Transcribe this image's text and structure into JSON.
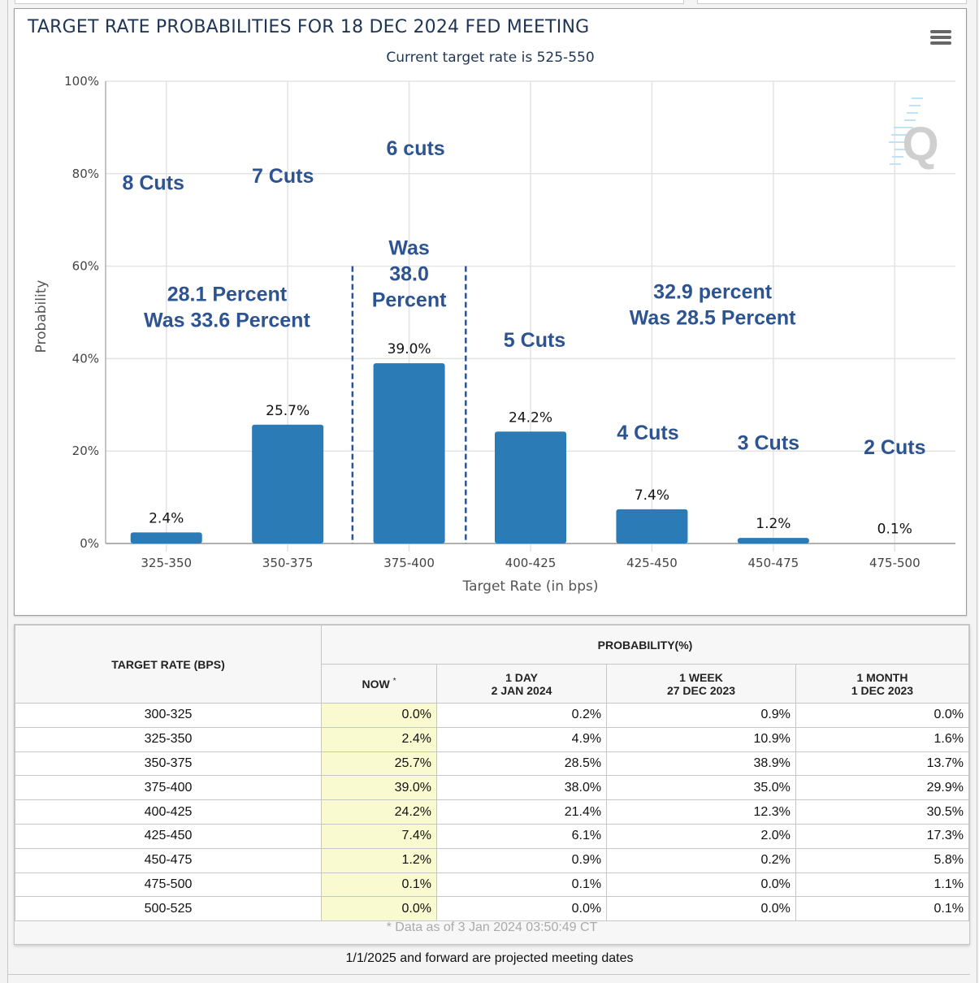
{
  "chart": {
    "title": "TARGET RATE PROBABILITIES FOR 18 DEC 2024 FED MEETING",
    "subtitle": "Current target rate is 525-550",
    "menu_icon": "hamburger-menu-icon",
    "watermark_icon": "q-logo-icon"
  },
  "chart_data": {
    "type": "bar",
    "title": "TARGET RATE PROBABILITIES FOR 18 DEC 2024 FED MEETING",
    "subtitle": "Current target rate is 525-550",
    "xlabel": "Target Rate (in bps)",
    "ylabel": "Probability",
    "ylim": [
      0,
      100
    ],
    "yticks": [
      "0%",
      "20%",
      "40%",
      "60%",
      "80%",
      "100%"
    ],
    "ytick_values": [
      0,
      20,
      40,
      60,
      80,
      100
    ],
    "grid": true,
    "categories": [
      "325-350",
      "350-375",
      "375-400",
      "400-425",
      "425-450",
      "450-475",
      "475-500"
    ],
    "values": [
      2.4,
      25.7,
      39.0,
      24.2,
      7.4,
      1.2,
      0.1
    ],
    "data_labels": [
      "2.4%",
      "25.7%",
      "39.0%",
      "24.2%",
      "7.4%",
      "1.2%",
      "0.1%"
    ],
    "bar_color": "#2b7bb6",
    "annotation_color": "#2d5491",
    "cut_labels": [
      {
        "category": "325-350",
        "text": "8 Cuts",
        "y": 76.5
      },
      {
        "category": "350-375",
        "text": "7 Cuts",
        "y": 78
      },
      {
        "category": "375-400",
        "text": "6 cuts",
        "y": 84
      },
      {
        "category": "400-425",
        "text": "5 Cuts",
        "y": 42.5
      },
      {
        "category": "425-450",
        "text": "4 Cuts",
        "y": 22.5
      },
      {
        "category": "450-475",
        "text": "3 Cuts",
        "y": 20.3
      },
      {
        "category": "475-500",
        "text": "2 Cuts",
        "y": 19.3
      }
    ],
    "annotations": [
      {
        "lines": [
          "28.1 Percent",
          "Was 33.6 Percent"
        ],
        "between": [
          "325-350",
          "350-375"
        ],
        "y": 52.5
      },
      {
        "lines": [
          "Was",
          "38.0",
          "Percent"
        ],
        "category": "375-400",
        "y": 62.5
      },
      {
        "lines": [
          "32.9 percent",
          "Was 28.5 Percent"
        ],
        "between": [
          "425-450",
          "450-475"
        ],
        "y": 53
      }
    ],
    "highlight_box": {
      "category": "375-400",
      "style": "dashed",
      "top_value": 60
    }
  },
  "table": {
    "header_rate": "TARGET RATE (BPS)",
    "header_group": "PROBABILITY(%)",
    "columns": [
      {
        "line1": "NOW",
        "line2": "",
        "marker": "*"
      },
      {
        "line1": "1 DAY",
        "line2": "2 JAN 2024"
      },
      {
        "line1": "1 WEEK",
        "line2": "27 DEC 2023"
      },
      {
        "line1": "1 MONTH",
        "line2": "1 DEC 2023"
      }
    ],
    "rows": [
      {
        "rate": "300-325",
        "now": "0.0%",
        "day": "0.2%",
        "week": "0.9%",
        "month": "0.0%"
      },
      {
        "rate": "325-350",
        "now": "2.4%",
        "day": "4.9%",
        "week": "10.9%",
        "month": "1.6%"
      },
      {
        "rate": "350-375",
        "now": "25.7%",
        "day": "28.5%",
        "week": "38.9%",
        "month": "13.7%"
      },
      {
        "rate": "375-400",
        "now": "39.0%",
        "day": "38.0%",
        "week": "35.0%",
        "month": "29.9%"
      },
      {
        "rate": "400-425",
        "now": "24.2%",
        "day": "21.4%",
        "week": "12.3%",
        "month": "30.5%"
      },
      {
        "rate": "425-450",
        "now": "7.4%",
        "day": "6.1%",
        "week": "2.0%",
        "month": "17.3%"
      },
      {
        "rate": "450-475",
        "now": "1.2%",
        "day": "0.9%",
        "week": "0.2%",
        "month": "5.8%"
      },
      {
        "rate": "475-500",
        "now": "0.1%",
        "day": "0.1%",
        "week": "0.0%",
        "month": "1.1%"
      },
      {
        "rate": "500-525",
        "now": "0.0%",
        "day": "0.0%",
        "week": "0.0%",
        "month": "0.1%"
      }
    ],
    "footnote": "* Data as of 3 Jan 2024 03:50:49 CT",
    "now_highlight_color": "#fafad0"
  },
  "note": "1/1/2025 and forward are projected meeting dates"
}
